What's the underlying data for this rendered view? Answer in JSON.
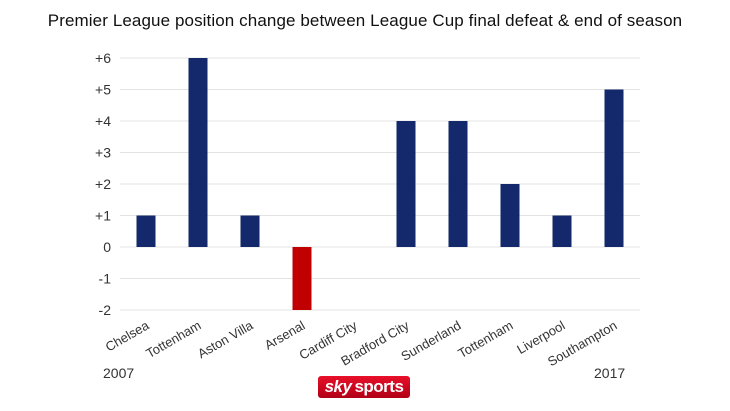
{
  "chart_data": {
    "type": "bar",
    "title": "Premier League position change between League Cup final defeat & end of season",
    "categories": [
      "Chelsea",
      "Tottenham",
      "Aston Villa",
      "Arsenal",
      "Cardiff City",
      "Bradford City",
      "Sunderland",
      "Tottenham",
      "Liverpool",
      "Southampton"
    ],
    "values": [
      1,
      6,
      1,
      -2,
      0,
      4,
      4,
      2,
      1,
      5
    ],
    "yticks": [
      "+6",
      "+5",
      "+4",
      "+3",
      "+2",
      "+1",
      "0",
      "-1",
      "-2"
    ],
    "ylim": [
      -2,
      6
    ],
    "grid": true,
    "colors": {
      "positive": "#13296b",
      "negative": "#c00000"
    },
    "start_year": "2007",
    "end_year": "2017"
  },
  "logo": {
    "part1": "sky",
    "part2": "sports"
  }
}
